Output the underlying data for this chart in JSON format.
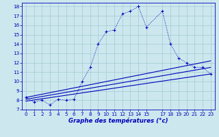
{
  "xlabel": "Graphe des températures (°c)",
  "bg_color": "#cce8ee",
  "grid_color": "#aacdd8",
  "line_color": "#0000bb",
  "xlim": [
    -0.5,
    23.5
  ],
  "ylim": [
    7,
    18.4
  ],
  "xticks": [
    0,
    1,
    2,
    3,
    4,
    5,
    6,
    7,
    8,
    9,
    10,
    11,
    12,
    13,
    14,
    15,
    17,
    18,
    19,
    20,
    21,
    22,
    23
  ],
  "yticks": [
    7,
    8,
    9,
    10,
    11,
    12,
    13,
    14,
    15,
    16,
    17,
    18
  ],
  "line1_x": [
    0,
    1,
    2,
    3,
    4,
    5,
    6,
    7,
    8,
    9,
    10,
    11,
    12,
    13,
    14,
    15,
    17,
    18,
    19,
    20,
    21,
    22,
    23
  ],
  "line1_y": [
    8.3,
    7.8,
    8.0,
    7.5,
    8.1,
    8.0,
    8.1,
    10.0,
    11.5,
    14.0,
    15.3,
    15.5,
    17.2,
    17.5,
    18.0,
    15.8,
    17.5,
    14.0,
    12.5,
    12.0,
    11.5,
    11.5,
    10.8
  ],
  "line2_x": [
    0,
    23
  ],
  "line2_y": [
    8.1,
    11.5
  ],
  "line3_x": [
    0,
    23
  ],
  "line3_y": [
    7.9,
    10.8
  ],
  "line4_x": [
    0,
    23
  ],
  "line4_y": [
    8.3,
    12.2
  ]
}
